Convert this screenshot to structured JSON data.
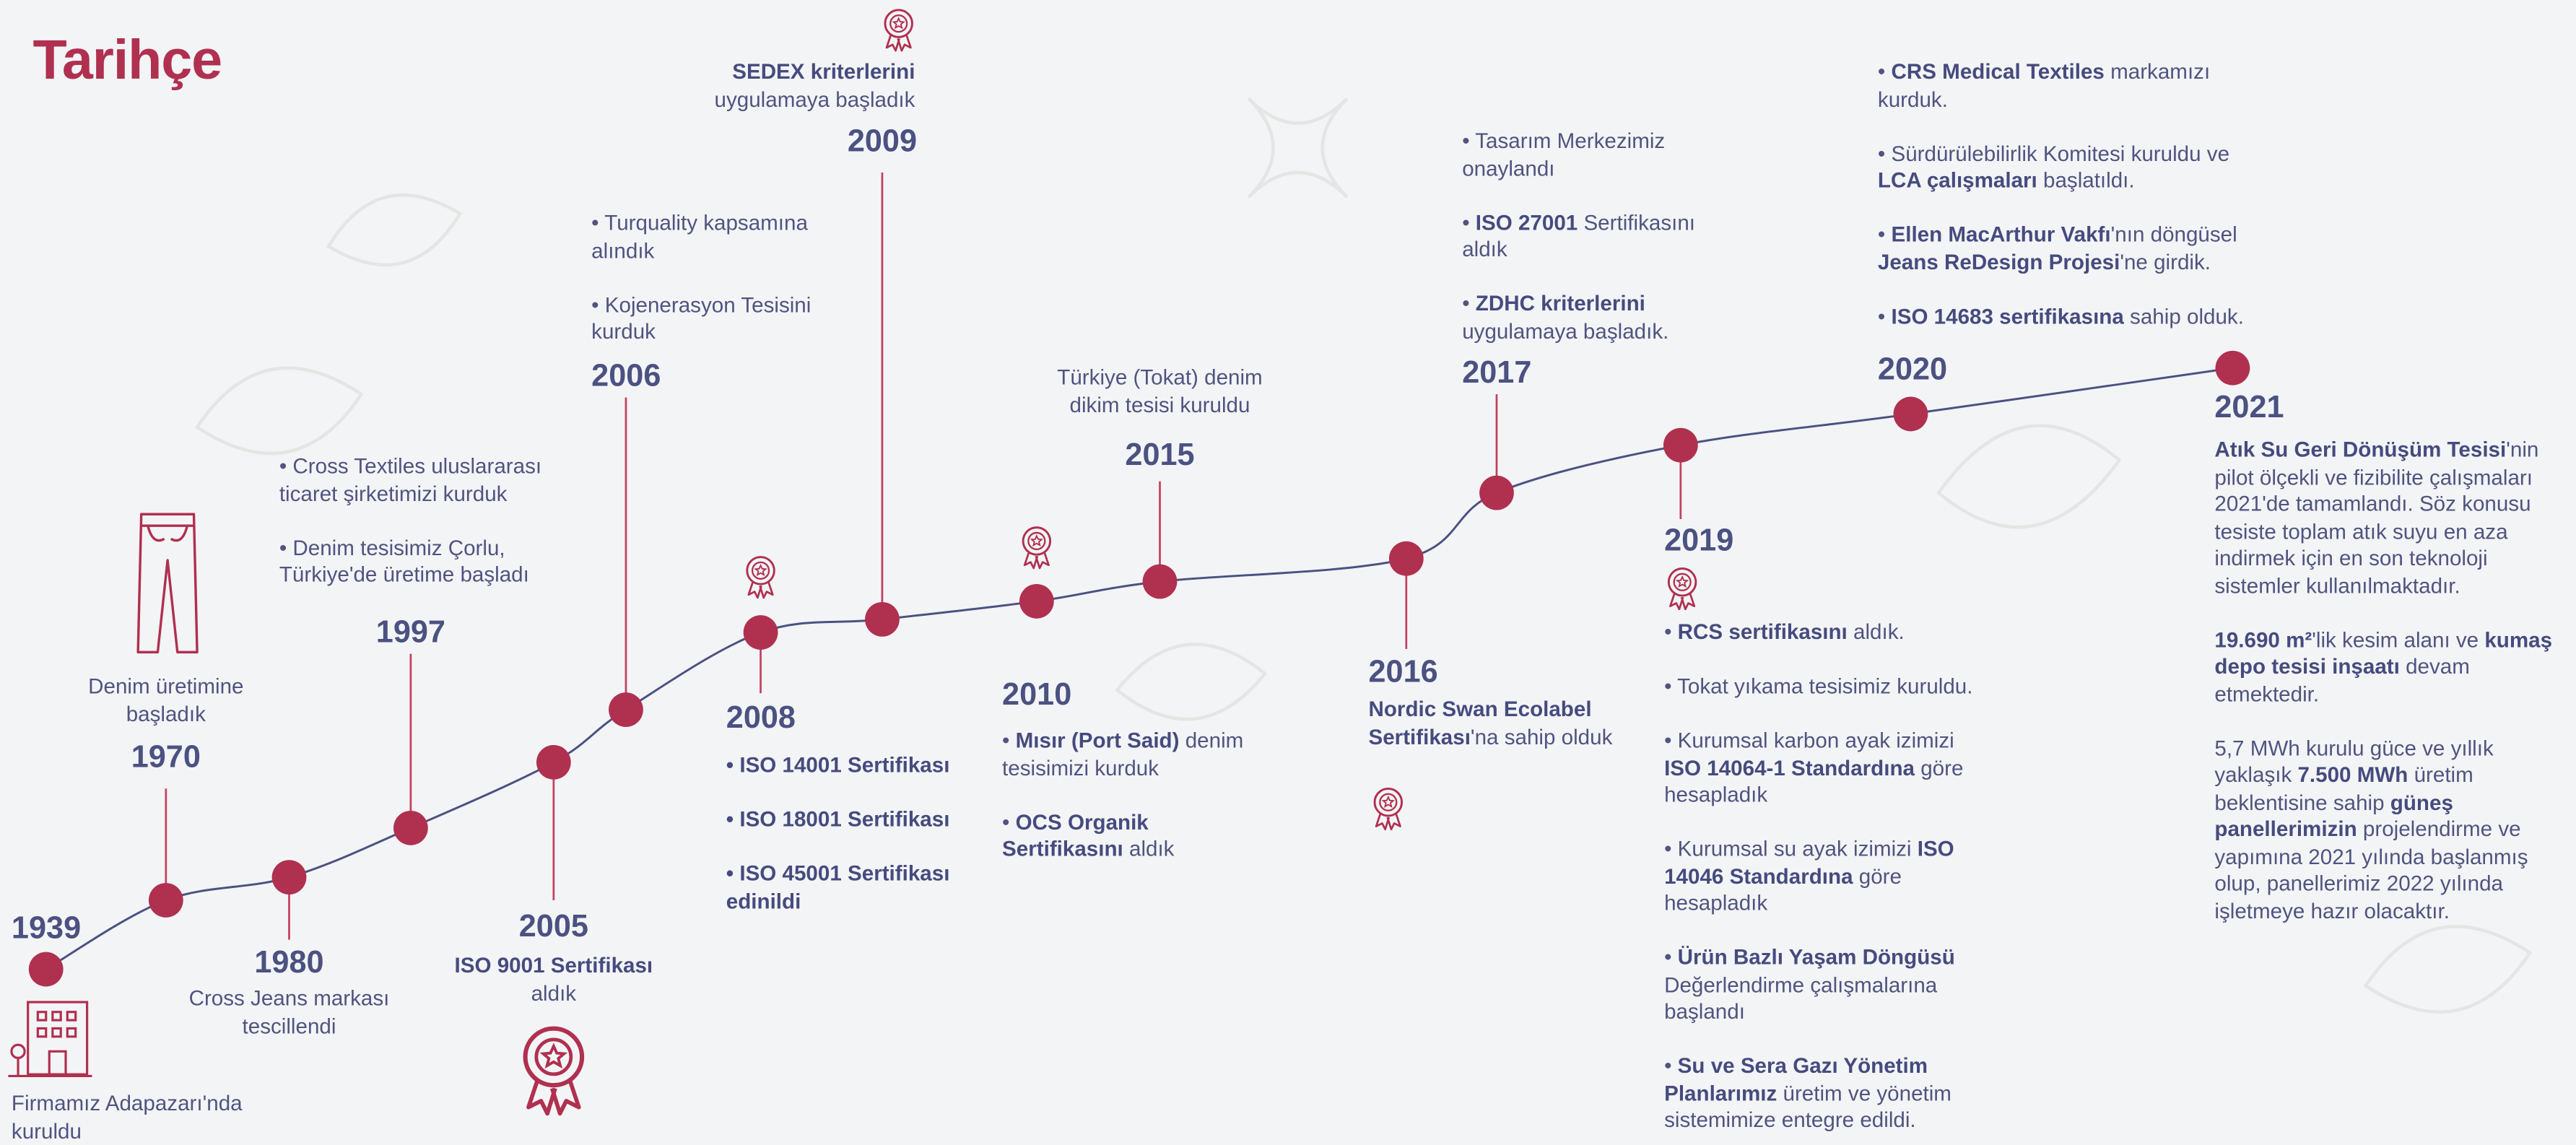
{
  "title": "Tarihçe",
  "events": [
    {
      "year": "1939",
      "paragraphs": [
        [
          {
            "text": "Firmamız Adapazarı'nda kuruldu"
          }
        ]
      ]
    },
    {
      "year": "1970",
      "paragraphs": [
        [
          {
            "text": "Denim üretimine başladık"
          }
        ]
      ]
    },
    {
      "year": "1980",
      "paragraphs": [
        [
          {
            "text": "Cross Jeans markası tescillendi"
          }
        ]
      ]
    },
    {
      "year": "1997",
      "paragraphs": [
        [
          {
            "text": "• Cross Textiles uluslararası ticaret şirketimizi kurduk"
          }
        ],
        [
          {
            "text": "• Denim tesisimiz Çorlu, Türkiye'de üretime başladı"
          }
        ]
      ]
    },
    {
      "year": "2005",
      "paragraphs": [
        [
          {
            "text": "ISO 9001 Sertifikası",
            "bold": true
          },
          {
            "text": " aldık"
          }
        ]
      ]
    },
    {
      "year": "2006",
      "paragraphs": [
        [
          {
            "text": "• Turquality kapsamına alındık"
          }
        ],
        [
          {
            "text": "• Kojenerasyon Tesisini kurduk"
          }
        ]
      ]
    },
    {
      "year": "2008",
      "paragraphs": [
        [
          {
            "text": "• ISO 14001 Sertifikası",
            "bold": true
          }
        ],
        [
          {
            "text": "• ISO 18001 Sertifikası",
            "bold": true
          }
        ],
        [
          {
            "text": "• ISO 45001 Sertifikası edinildi",
            "bold": true
          }
        ]
      ]
    },
    {
      "year": "2009",
      "paragraphs": [
        [
          {
            "text": "SEDEX kriterlerini",
            "bold": true
          },
          {
            "text": " uygulamaya başladık"
          }
        ]
      ]
    },
    {
      "year": "2010",
      "paragraphs": [
        [
          {
            "text": "• "
          },
          {
            "text": "Mısır (Port Said)",
            "bold": true
          },
          {
            "text": " denim tesisimizi kurduk"
          }
        ],
        [
          {
            "text": "• "
          },
          {
            "text": "OCS Organik Sertifikasını",
            "bold": true
          },
          {
            "text": " aldık"
          }
        ]
      ]
    },
    {
      "year": "2015",
      "paragraphs": [
        [
          {
            "text": "Türkiye (Tokat) denim dikim tesisi kuruldu"
          }
        ]
      ]
    },
    {
      "year": "2016",
      "paragraphs": [
        [
          {
            "text": "Nordic Swan Ecolabel Sertifikası",
            "bold": true
          },
          {
            "text": "'na sahip olduk"
          }
        ]
      ]
    },
    {
      "year": "2017",
      "paragraphs": [
        [
          {
            "text": "• Tasarım Merkezimiz onaylandı"
          }
        ],
        [
          {
            "text": "• "
          },
          {
            "text": "ISO 27001",
            "bold": true
          },
          {
            "text": " Sertifikasını aldık"
          }
        ],
        [
          {
            "text": "• "
          },
          {
            "text": "ZDHC kriterlerini",
            "bold": true
          },
          {
            "text": " uygulamaya başladık."
          }
        ]
      ]
    },
    {
      "year": "2019",
      "paragraphs": [
        [
          {
            "text": "• "
          },
          {
            "text": "RCS sertifikasını",
            "bold": true
          },
          {
            "text": " aldık."
          }
        ],
        [
          {
            "text": "• Tokat yıkama tesisimiz kuruldu."
          }
        ],
        [
          {
            "text": "• Kurumsal karbon ayak izimizi "
          },
          {
            "text": "ISO 14064-1 Standardına",
            "bold": true
          },
          {
            "text": " göre hesapladık"
          }
        ],
        [
          {
            "text": "• Kurumsal su ayak izimizi "
          },
          {
            "text": "ISO 14046 Standardına",
            "bold": true
          },
          {
            "text": " göre hesapladık"
          }
        ],
        [
          {
            "text": "• "
          },
          {
            "text": "Ürün Bazlı Yaşam Döngüsü",
            "bold": true
          },
          {
            "text": " Değerlendirme çalışmalarına başlandı"
          }
        ],
        [
          {
            "text": "• "
          },
          {
            "text": "Su ve Sera Gazı Yönetim Planlarımız",
            "bold": true
          },
          {
            "text": " üretim ve yönetim sistemimize entegre edildi."
          }
        ]
      ]
    },
    {
      "year": "2020",
      "paragraphs": [
        [
          {
            "text": "• "
          },
          {
            "text": "CRS Medical Textiles",
            "bold": true
          },
          {
            "text": " markamızı kurduk."
          }
        ],
        [
          {
            "text": "• Sürdürülebilirlik Komitesi kuruldu ve "
          },
          {
            "text": "LCA çalışmaları",
            "bold": true
          },
          {
            "text": " başlatıldı."
          }
        ],
        [
          {
            "text": "• "
          },
          {
            "text": "Ellen MacArthur Vakfı",
            "bold": true
          },
          {
            "text": "'nın döngüsel "
          },
          {
            "text": "Jeans ReDesign Projesi",
            "bold": true
          },
          {
            "text": "'ne girdik."
          }
        ],
        [
          {
            "text": "• "
          },
          {
            "text": "ISO 14683 sertifikasına",
            "bold": true
          },
          {
            "text": " sahip olduk."
          }
        ]
      ]
    },
    {
      "year": "2021",
      "paragraphs": [
        [
          {
            "text": "Atık Su Geri Dönüşüm Tesisi",
            "bold": true
          },
          {
            "text": "'nin pilot ölçekli ve fizibilite çalışmaları 2021'de tamamlandı. Söz konusu tesiste toplam atık suyu en aza indirmek için en son teknoloji sistemler kullanılmaktadır."
          }
        ],
        [
          {
            "text": "19.690 m²",
            "bold": true
          },
          {
            "text": "'lik kesim alanı ve "
          },
          {
            "text": "kumaş depo tesisi inşaatı",
            "bold": true
          },
          {
            "text": " devam etmektedir."
          }
        ],
        [
          {
            "text": "5,7 MWh kurulu güce ve yıllık yaklaşık "
          },
          {
            "text": "7.500 MWh",
            "bold": true
          },
          {
            "text": " üretim beklentisine sahip "
          },
          {
            "text": "güneş panellerimizin",
            "bold": true
          },
          {
            "text": " projelendirme ve yapımına 2021 yılında başlanmış olup, panellerimiz 2022 yılında işletmeye hazır olacaktır."
          }
        ]
      ]
    }
  ]
}
